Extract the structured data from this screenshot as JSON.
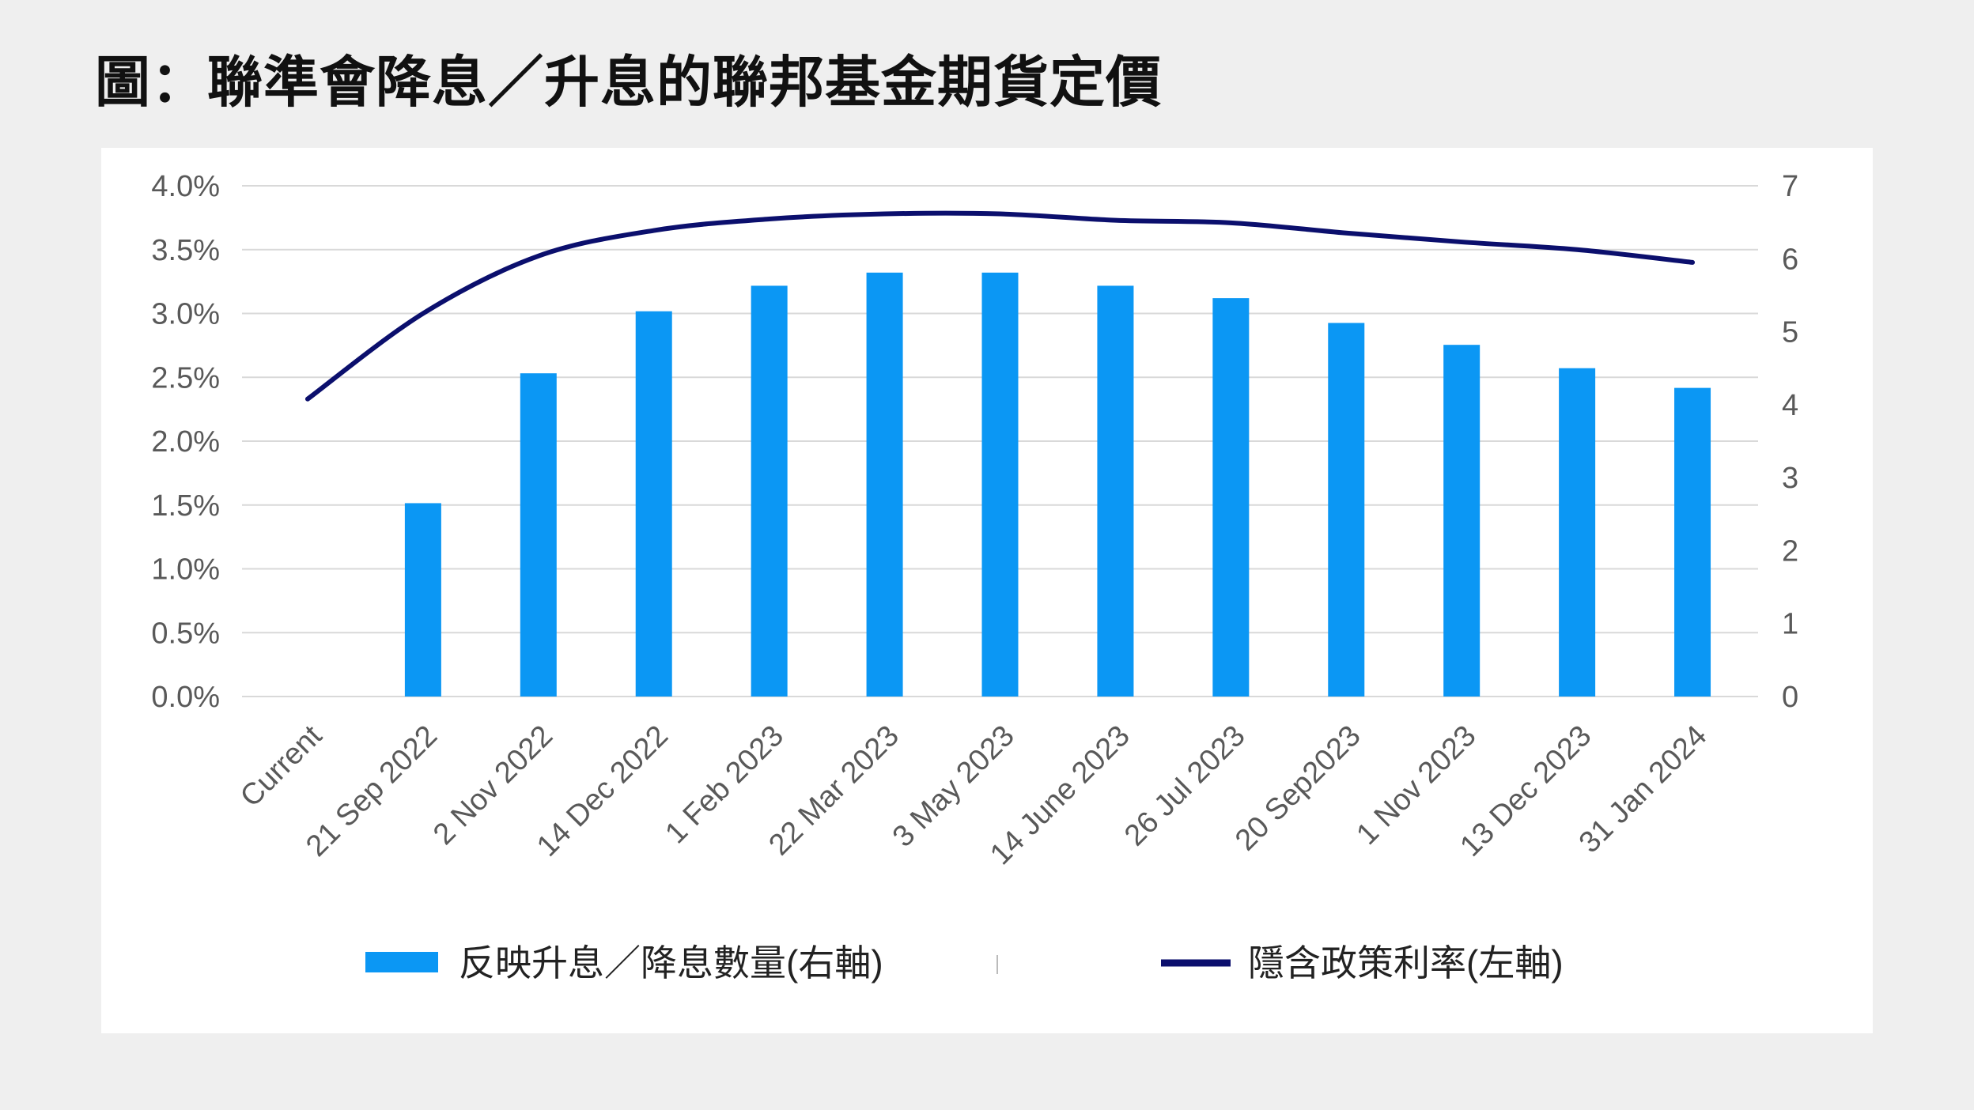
{
  "page": {
    "title": "圖：聯準會降息／升息的聯邦基金期貨定價"
  },
  "colors": {
    "bar": "#0b97f4",
    "line": "#0b0f6d",
    "grid": "#d9d9d9",
    "tick_text": "#595959",
    "legend_text": "#222222",
    "background": "#efefef",
    "card": "#ffffff"
  },
  "chart_data": {
    "type": "bar",
    "categories": [
      "Current",
      "21 Sep 2022",
      "2 Nov 2022",
      "14 Dec 2022",
      "1 Feb 2023",
      "22 Mar 2023",
      "3 May 2023",
      "14 June 2023",
      "26 Jul 2023",
      "20 Sep2023",
      "1 Nov 2023",
      "13 Dec 2023",
      "31 Jan 2024"
    ],
    "series": [
      {
        "name": "反映升息／降息數量(右軸)",
        "type": "bar",
        "axis": "right",
        "values": [
          null,
          2.65,
          4.43,
          5.28,
          5.63,
          5.81,
          5.81,
          5.63,
          5.46,
          5.12,
          4.82,
          4.5,
          4.23
        ]
      },
      {
        "name": "隱含政策利率(左軸)",
        "type": "line",
        "axis": "left",
        "values": [
          2.33,
          3.0,
          3.45,
          3.65,
          3.74,
          3.78,
          3.78,
          3.73,
          3.71,
          3.63,
          3.56,
          3.5,
          3.4
        ]
      }
    ],
    "left_axis": {
      "ylim": [
        0,
        4
      ],
      "ticks": [
        "0.0%",
        "0.5%",
        "1.0%",
        "1.5%",
        "2.0%",
        "2.5%",
        "3.0%",
        "3.5%",
        "4.0%"
      ]
    },
    "right_axis": {
      "ylim": [
        0,
        7
      ],
      "ticks": [
        "0",
        "1",
        "2",
        "3",
        "4",
        "5",
        "6",
        "7"
      ]
    },
    "grid": true,
    "legend_position": "bottom"
  }
}
